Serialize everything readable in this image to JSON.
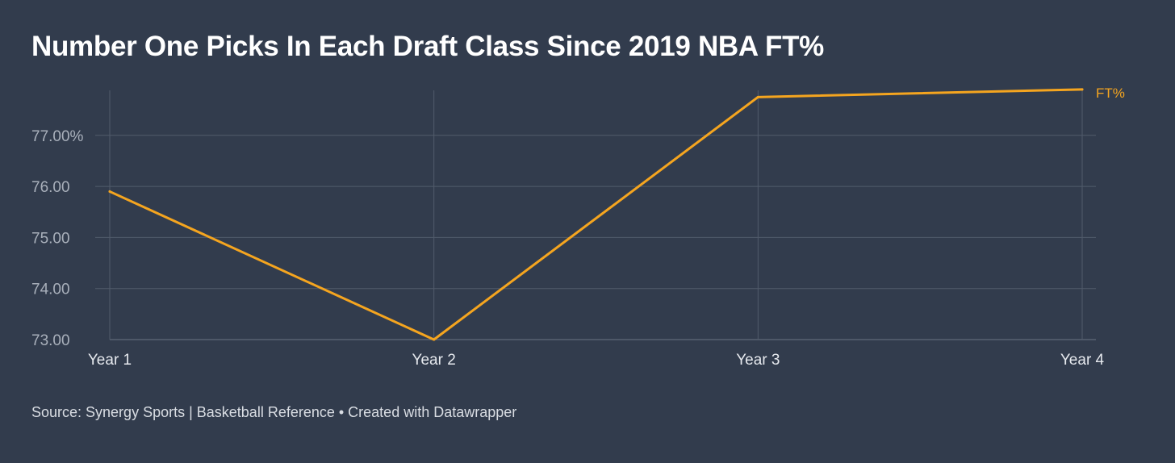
{
  "chart_data": {
    "type": "line",
    "title": "Number One Picks In Each Draft Class Since 2019 NBA FT%",
    "categories": [
      "Year 1",
      "Year 2",
      "Year 3",
      "Year 4"
    ],
    "series": [
      {
        "name": "FT%",
        "values": [
          75.9,
          73.0,
          77.75,
          77.9
        ],
        "color": "#f5a51f"
      }
    ],
    "yticks": [
      "73.00",
      "74.00",
      "75.00",
      "76.00",
      "77.00%"
    ],
    "ytick_values": [
      73,
      74,
      75,
      76,
      77
    ],
    "ylim": [
      73,
      77.9
    ],
    "xlabel": "",
    "ylabel": "",
    "grid": true,
    "legend": "end-of-line label"
  },
  "footer": {
    "text": "Source: Synergy Sports | Basketball Reference • Created with Datawrapper"
  },
  "colors": {
    "background": "#323c4d",
    "grid": "#515b6b",
    "line": "#f5a51f"
  }
}
